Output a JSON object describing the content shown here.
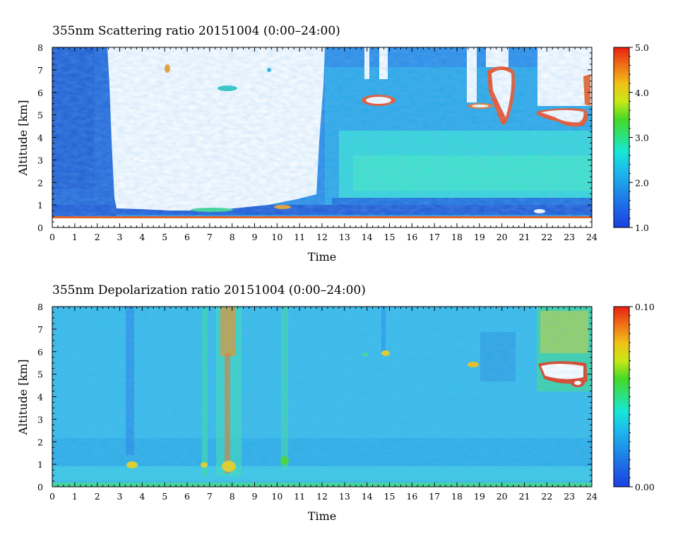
{
  "chart_data": [
    {
      "type": "heatmap",
      "title": "355nm Scattering ratio  20151004 (0:00–24:00)",
      "xlabel": "Time",
      "ylabel": "Altitude [km]",
      "xlim": [
        0,
        24
      ],
      "ylim": [
        0,
        8
      ],
      "x_ticks": [
        "0",
        "1",
        "2",
        "3",
        "4",
        "5",
        "6",
        "7",
        "8",
        "9",
        "10",
        "11",
        "12",
        "13",
        "14",
        "15",
        "16",
        "17",
        "18",
        "19",
        "20",
        "21",
        "22",
        "23",
        "24"
      ],
      "y_ticks": [
        "0",
        "1",
        "2",
        "3",
        "4",
        "5",
        "6",
        "7",
        "8"
      ],
      "colorbar": {
        "min": 1.0,
        "max": 5.0,
        "tick_labels": [
          "1.0",
          "2.0",
          "3.0",
          "4.0",
          "5.0"
        ]
      },
      "features": [
        {
          "name": "no-signal region (white)",
          "time": [
            2.7,
            12.0
          ],
          "altitude": [
            0.7,
            8.0
          ]
        },
        {
          "name": "moist boundary layer",
          "time": [
            12.5,
            24.0
          ],
          "altitude": [
            0.9,
            4.3
          ],
          "value": 2.2
        },
        {
          "name": "cloud",
          "time": [
            13.8,
            15.2
          ],
          "altitude": [
            5.3,
            5.8
          ],
          "value": 5.0
        },
        {
          "name": "cloud",
          "time": [
            18.6,
            20.8
          ],
          "altitude": [
            4.5,
            7.2
          ],
          "value": 5.0
        },
        {
          "name": "cloud",
          "time": [
            21.8,
            24.0
          ],
          "altitude": [
            4.6,
            6.8
          ],
          "value": 5.0
        },
        {
          "name": "surface layer",
          "time": [
            0,
            24
          ],
          "altitude": [
            0.4,
            0.5
          ],
          "value": 4.5
        }
      ]
    },
    {
      "type": "heatmap",
      "title": "355nm Depolarization ratio  20151004 (0:00–24:00)",
      "xlabel": "Time",
      "ylabel": "Altitude [km]",
      "xlim": [
        0,
        24
      ],
      "ylim": [
        0,
        8
      ],
      "x_ticks": [
        "0",
        "1",
        "2",
        "3",
        "4",
        "5",
        "6",
        "7",
        "8",
        "9",
        "10",
        "11",
        "12",
        "13",
        "14",
        "15",
        "16",
        "17",
        "18",
        "19",
        "20",
        "21",
        "22",
        "23",
        "24"
      ],
      "y_ticks": [
        "0",
        "1",
        "2",
        "3",
        "4",
        "5",
        "6",
        "7",
        "8"
      ],
      "colorbar": {
        "min": 0.0,
        "max": 0.1,
        "tick_labels": [
          "0.00",
          "0.10"
        ]
      },
      "features": [
        {
          "name": "background",
          "value": 0.03
        },
        {
          "name": "noisy column",
          "time": [
            6.6,
            8.3
          ],
          "altitude": [
            0.5,
            8.0
          ],
          "value": 0.08
        },
        {
          "name": "noisy column",
          "time": [
            10.0,
            10.5
          ],
          "altitude": [
            0.8,
            8.0
          ],
          "value": 0.05
        },
        {
          "name": "ice cloud",
          "time": [
            21.5,
            24.0
          ],
          "altitude": [
            4.5,
            8.0
          ],
          "value": 0.1
        },
        {
          "name": "aerosol layer",
          "time": [
            0,
            24
          ],
          "altitude": [
            0.05,
            0.15
          ],
          "value": 0.05
        }
      ]
    }
  ]
}
